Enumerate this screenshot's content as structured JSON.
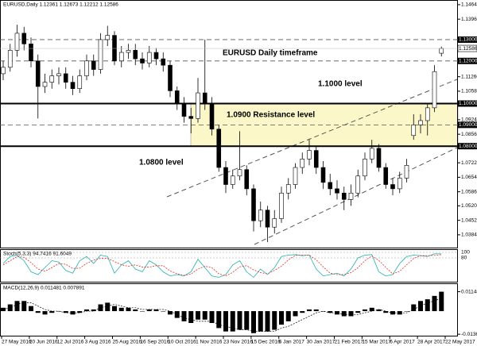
{
  "chart_data": [
    {
      "type": "candlestick",
      "title": "EURUSD,Daily  1.12361 1.12673 1.12212 1.12586",
      "annotations": [
        "EURUSD Daily timeframe",
        "1.1000 level",
        "1.0900 Resistance level",
        "1.0800 level"
      ],
      "up_color": "#ffffff",
      "down_color": "#000000",
      "zone_color": "#fbf7c8",
      "ylim": [
        1.0324,
        1.1486
      ],
      "yticks": [
        {
          "value": 1.1464,
          "label": "1.14640"
        },
        {
          "value": 1.1396,
          "label": "1.13960"
        },
        {
          "value": 1.1194,
          "label": "1.11940"
        },
        {
          "value": 1.1126,
          "label": "1.11260"
        },
        {
          "value": 1.1058,
          "label": "1.10580"
        },
        {
          "value": 1.0924,
          "label": "1.09240"
        },
        {
          "value": 1.0856,
          "label": "1.08560"
        },
        {
          "value": 1.0722,
          "label": "1.07220"
        },
        {
          "value": 1.0654,
          "label": "1.06540"
        },
        {
          "value": 1.0586,
          "label": "1.05860"
        },
        {
          "value": 1.052,
          "label": "1.05200"
        },
        {
          "value": 1.0452,
          "label": "1.04520"
        },
        {
          "value": 1.0384,
          "label": "1.03840"
        }
      ],
      "levels": [
        {
          "value": 1.13,
          "label": "1.13000",
          "style": "dashed"
        },
        {
          "value": 1.12,
          "label": "1.12000",
          "style": "dashed"
        },
        {
          "value": 1.1,
          "label": "1.10000",
          "style": "solid"
        },
        {
          "value": 1.09,
          "label": "1.09000",
          "style": "dashed"
        },
        {
          "value": 1.08,
          "label": "1.08000",
          "style": "solid"
        }
      ],
      "candles": [
        [
          1.114,
          1.12,
          1.111,
          1.117
        ],
        [
          1.117,
          1.128,
          1.115,
          1.125
        ],
        [
          1.125,
          1.137,
          1.122,
          1.133
        ],
        [
          1.133,
          1.136,
          1.125,
          1.128
        ],
        [
          1.128,
          1.131,
          1.117,
          1.12
        ],
        [
          1.12,
          1.123,
          1.093,
          1.108
        ],
        [
          1.108,
          1.114,
          1.105,
          1.11
        ],
        [
          1.11,
          1.116,
          1.107,
          1.113
        ],
        [
          1.113,
          1.117,
          1.109,
          1.114
        ],
        [
          1.114,
          1.117,
          1.107,
          1.11
        ],
        [
          1.11,
          1.113,
          1.104,
          1.107
        ],
        [
          1.107,
          1.116,
          1.105,
          1.113
        ],
        [
          1.113,
          1.123,
          1.111,
          1.12
        ],
        [
          1.12,
          1.123,
          1.113,
          1.116
        ],
        [
          1.116,
          1.133,
          1.114,
          1.13
        ],
        [
          1.13,
          1.1365,
          1.127,
          1.132
        ],
        [
          1.132,
          1.134,
          1.118,
          1.12
        ],
        [
          1.12,
          1.127,
          1.117,
          1.124
        ],
        [
          1.124,
          1.128,
          1.121,
          1.125
        ],
        [
          1.125,
          1.128,
          1.118,
          1.121
        ],
        [
          1.121,
          1.124,
          1.116,
          1.119
        ],
        [
          1.119,
          1.127,
          1.117,
          1.124
        ],
        [
          1.124,
          1.126,
          1.118,
          1.121
        ],
        [
          1.121,
          1.124,
          1.115,
          1.118
        ],
        [
          1.118,
          1.12,
          1.103,
          1.106
        ],
        [
          1.106,
          1.108,
          1.097,
          1.1
        ],
        [
          1.1,
          1.103,
          1.091,
          1.094
        ],
        [
          1.094,
          1.098,
          1.086,
          1.093
        ],
        [
          1.093,
          1.112,
          1.091,
          1.105
        ],
        [
          1.105,
          1.13,
          1.097,
          1.1
        ],
        [
          1.1,
          1.103,
          1.085,
          1.088
        ],
        [
          1.088,
          1.09,
          1.068,
          1.07
        ],
        [
          1.07,
          1.073,
          1.058,
          1.062
        ],
        [
          1.062,
          1.069,
          1.06,
          1.066
        ],
        [
          1.066,
          1.087,
          1.064,
          1.069
        ],
        [
          1.069,
          1.071,
          1.057,
          1.06
        ],
        [
          1.06,
          1.062,
          1.04,
          1.045
        ],
        [
          1.045,
          1.054,
          1.042,
          1.05
        ],
        [
          1.05,
          1.052,
          1.035,
          1.042
        ],
        [
          1.042,
          1.05,
          1.039,
          1.046
        ],
        [
          1.046,
          1.061,
          1.044,
          1.058
        ],
        [
          1.058,
          1.065,
          1.055,
          1.062
        ],
        [
          1.062,
          1.072,
          1.06,
          1.07
        ],
        [
          1.07,
          1.077,
          1.067,
          1.074
        ],
        [
          1.074,
          1.083,
          1.071,
          1.078
        ],
        [
          1.078,
          1.08,
          1.067,
          1.07
        ],
        [
          1.07,
          1.073,
          1.06,
          1.063
        ],
        [
          1.063,
          1.067,
          1.057,
          1.06
        ],
        [
          1.06,
          1.064,
          1.055,
          1.058
        ],
        [
          1.058,
          1.061,
          1.05,
          1.055
        ],
        [
          1.055,
          1.062,
          1.052,
          1.058
        ],
        [
          1.058,
          1.069,
          1.056,
          1.066
        ],
        [
          1.066,
          1.077,
          1.064,
          1.074
        ],
        [
          1.074,
          1.083,
          1.072,
          1.079
        ],
        [
          1.079,
          1.081,
          1.068,
          1.07
        ],
        [
          1.07,
          1.072,
          1.06,
          1.062
        ],
        [
          1.062,
          1.065,
          1.057,
          1.06
        ],
        [
          1.06,
          1.068,
          1.058,
          1.065
        ],
        [
          1.065,
          1.074,
          1.063,
          1.071
        ],
        [
          1.085,
          1.095,
          1.083,
          1.09
        ],
        [
          1.09,
          1.095,
          1.086,
          1.092
        ],
        [
          1.092,
          1.1,
          1.085,
          1.098
        ],
        [
          1.098,
          1.118,
          1.096,
          1.115
        ],
        [
          1.12361,
          1.12673,
          1.12212,
          1.12586
        ]
      ]
    },
    {
      "type": "line",
      "title": "Stoch(5,3,3) 94.7416 91.6049",
      "ylim": [
        0,
        100
      ],
      "yticks": [
        100,
        80
      ],
      "series": [
        {
          "color": "#20b2aa",
          "values": [
            60,
            85,
            90,
            70,
            30,
            20,
            45,
            70,
            65,
            35,
            25,
            70,
            85,
            60,
            90,
            85,
            25,
            55,
            70,
            40,
            30,
            70,
            55,
            30,
            15,
            20,
            15,
            30,
            75,
            45,
            15,
            10,
            20,
            55,
            70,
            30,
            10,
            40,
            20,
            45,
            85,
            90,
            92,
            88,
            90,
            40,
            15,
            20,
            25,
            15,
            40,
            80,
            90,
            92,
            30,
            15,
            20,
            60,
            85,
            90,
            88,
            85,
            95,
            94.7416
          ]
        },
        {
          "color": "#e0302a",
          "dashed": true,
          "values": [
            55,
            70,
            85,
            82,
            63,
            40,
            32,
            45,
            60,
            57,
            42,
            43,
            60,
            72,
            78,
            78,
            67,
            55,
            50,
            55,
            47,
            47,
            52,
            52,
            33,
            23,
            17,
            22,
            40,
            50,
            45,
            23,
            15,
            28,
            48,
            52,
            37,
            27,
            23,
            35,
            50,
            73,
            89,
            90,
            90,
            73,
            48,
            25,
            20,
            20,
            27,
            45,
            70,
            87,
            71,
            46,
            22,
            32,
            55,
            78,
            88,
            88,
            89,
            91.6049
          ]
        }
      ]
    },
    {
      "type": "macd",
      "title": "MACD(12,26,9) 0.011481 0.007891",
      "ylim": [
        -0.0145,
        0.0155
      ],
      "yticks": [
        0.011481,
        -0.013624
      ],
      "histogram": [
        0.002,
        0.004,
        0.006,
        0.006,
        0.003,
        -0.001,
        -0.002,
        -0.001,
        0,
        -0.001,
        -0.002,
        -0.001,
        0.001,
        0.001,
        0.004,
        0.005,
        0.003,
        0.002,
        0.002,
        0.001,
        0,
        0.001,
        0.001,
        0,
        -0.002,
        -0.004,
        -0.006,
        -0.007,
        -0.005,
        -0.005,
        -0.007,
        -0.01,
        -0.012,
        -0.012,
        -0.011,
        -0.011,
        -0.013,
        -0.012,
        -0.012,
        -0.011,
        -0.008,
        -0.006,
        -0.003,
        -0.001,
        0.001,
        0.001,
        0,
        -0.001,
        -0.002,
        -0.003,
        -0.003,
        -0.001,
        0.001,
        0.002,
        0.001,
        -0.001,
        -0.002,
        -0.002,
        0,
        0.004,
        0.006,
        0.007,
        0.009,
        0.011481
      ],
      "signal": [
        0.001,
        0.002,
        0.004,
        0.005,
        0.005,
        0.003,
        0.001,
        0,
        0,
        -0.001,
        -0.001,
        -0.001,
        0,
        0,
        0.002,
        0.003,
        0.004,
        0.003,
        0.002,
        0.002,
        0.001,
        0.001,
        0.001,
        0.001,
        0,
        -0.002,
        -0.004,
        -0.005,
        -0.006,
        -0.006,
        -0.006,
        -0.008,
        -0.009,
        -0.01,
        -0.011,
        -0.011,
        -0.012,
        -0.012,
        -0.012,
        -0.012,
        -0.01,
        -0.009,
        -0.007,
        -0.005,
        -0.003,
        -0.001,
        0,
        -0.001,
        -0.001,
        -0.002,
        -0.002,
        -0.002,
        -0.001,
        0,
        0.001,
        0,
        -0.001,
        -0.001,
        -0.001,
        0.001,
        0.003,
        0.005,
        0.006,
        0.007891
      ],
      "date_labels": [
        "27 May 2016",
        "20 Jun 2016",
        "12 Jul 2016",
        "3 Aug 2016",
        "25 Aug 2016",
        "16 Sep 2016",
        "10 Oct 2016",
        "1 Nov 2016",
        "23 Nov 2016",
        "15 Dec 2016",
        "6 Jan 2017",
        "30 Jan 2017",
        "21 Feb 2017",
        "15 Mar 2017",
        "6 Apr 2017",
        "28 Apr 2017",
        "22 May 2017"
      ]
    }
  ]
}
